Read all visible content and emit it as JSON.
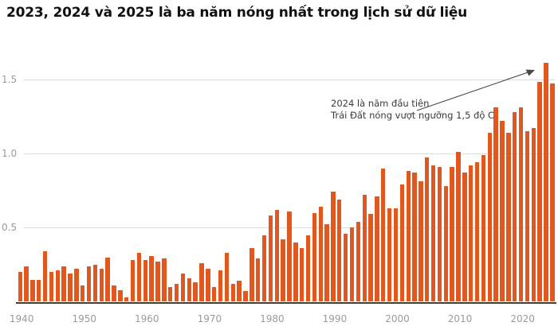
{
  "title": "2023, 2024 và 2025 là ba năm nóng nhất trong lịch sử dữ liệu",
  "annotation": {
    "line1": "2024 là năm đầu tiên",
    "line2": "Trái Đất nóng vượt ngưỡng 1,5 độ C"
  },
  "y_axis": {
    "ticks": [
      {
        "label": "0.5",
        "value": 0.5
      },
      {
        "label": "1.0",
        "value": 1.0
      },
      {
        "label": "1.5",
        "value": 1.5
      }
    ]
  },
  "x_axis": {
    "tick_years": [
      1940,
      1950,
      1960,
      1970,
      1980,
      1990,
      2000,
      2010,
      2020
    ]
  },
  "colors": {
    "bar": "#e2571e",
    "grid": "#dcdcdc",
    "axis_text": "#9b9b9b",
    "baseline": "#3f3f3f",
    "title": "#111111",
    "annotation": "#3a3a3a"
  },
  "chart_data": {
    "type": "bar",
    "title": "2023, 2024 và 2025 là ba năm nóng nhất trong lịch sử dữ liệu",
    "xlabel": "",
    "ylabel": "",
    "ylim": [
      0,
      1.7
    ],
    "grid": "horizontal",
    "annotation_target_year": 2024,
    "x": [
      1940,
      1941,
      1942,
      1943,
      1944,
      1945,
      1946,
      1947,
      1948,
      1949,
      1950,
      1951,
      1952,
      1953,
      1954,
      1955,
      1956,
      1957,
      1958,
      1959,
      1960,
      1961,
      1962,
      1963,
      1964,
      1965,
      1966,
      1967,
      1968,
      1969,
      1970,
      1971,
      1972,
      1973,
      1974,
      1975,
      1976,
      1977,
      1978,
      1979,
      1980,
      1981,
      1982,
      1983,
      1984,
      1985,
      1986,
      1987,
      1988,
      1989,
      1990,
      1991,
      1992,
      1993,
      1994,
      1995,
      1996,
      1997,
      1998,
      1999,
      2000,
      2001,
      2002,
      2003,
      2004,
      2005,
      2006,
      2007,
      2008,
      2009,
      2010,
      2011,
      2012,
      2013,
      2014,
      2015,
      2016,
      2017,
      2018,
      2019,
      2020,
      2021,
      2022,
      2023,
      2024,
      2025
    ],
    "values": [
      0.2,
      0.24,
      0.15,
      0.15,
      0.34,
      0.2,
      0.21,
      0.24,
      0.19,
      0.22,
      0.11,
      0.24,
      0.25,
      0.22,
      0.3,
      0.11,
      0.08,
      0.03,
      0.28,
      0.33,
      0.28,
      0.31,
      0.27,
      0.29,
      0.1,
      0.12,
      0.19,
      0.16,
      0.13,
      0.26,
      0.22,
      0.1,
      0.21,
      0.33,
      0.12,
      0.14,
      0.07,
      0.36,
      0.29,
      0.45,
      0.58,
      0.62,
      0.42,
      0.61,
      0.4,
      0.36,
      0.45,
      0.6,
      0.64,
      0.52,
      0.74,
      0.69,
      0.46,
      0.5,
      0.54,
      0.72,
      0.59,
      0.71,
      0.9,
      0.63,
      0.63,
      0.79,
      0.88,
      0.87,
      0.81,
      0.97,
      0.92,
      0.91,
      0.78,
      0.91,
      1.01,
      0.87,
      0.92,
      0.94,
      0.99,
      1.14,
      1.31,
      1.22,
      1.14,
      1.28,
      1.31,
      1.15,
      1.17,
      1.48,
      1.61,
      1.47
    ]
  }
}
